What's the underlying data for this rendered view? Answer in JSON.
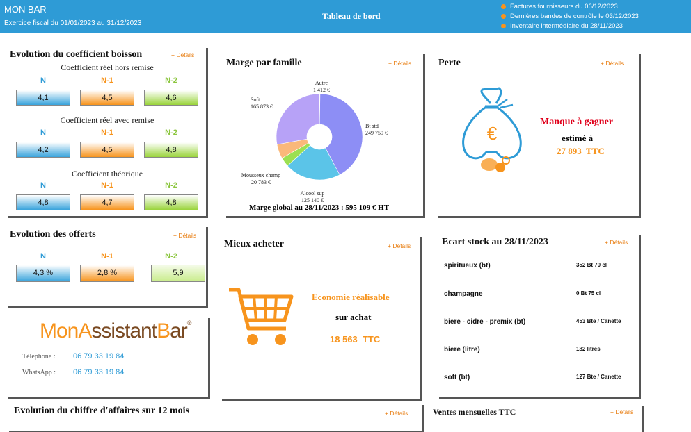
{
  "header": {
    "name": "MON BAR",
    "fiscal": "Exercice fiscal du 01/01/2023 au 31/12/2023",
    "title": "Tableau de bord",
    "notes": [
      "Factures fournisseurs du 06/12/2023",
      "Dernières bandes de contrôle le 03/12/2023",
      "Inventaire intermédiaire du 28/11/2023"
    ]
  },
  "details_label": "+ Détails",
  "coeff": {
    "title": "Evolution du coefficient boisson",
    "cols": [
      "N",
      "N-1",
      "N-2"
    ],
    "groups": [
      {
        "label": "Coefficient réel hors remise",
        "values": [
          "4,1",
          "4,5",
          "4,6"
        ]
      },
      {
        "label": "Coefficient réel avec remise",
        "values": [
          "4,2",
          "4,5",
          "4,8"
        ]
      },
      {
        "label": "Coefficient théorique",
        "values": [
          "4,8",
          "4,7",
          "4,8"
        ]
      }
    ]
  },
  "offerts": {
    "title": "Evolution des offerts",
    "cols": [
      "N",
      "N-1",
      "N-2"
    ],
    "values": [
      "4,3 %",
      "2,8 %",
      "5,9"
    ]
  },
  "contact": {
    "logo_parts": [
      "Mon",
      "A",
      "ssistant",
      "B",
      "ar"
    ],
    "logo_mark": "®",
    "phone_label": "Téléphone :",
    "phone": "06 79 33 19 84",
    "whatsapp_label": "WhatsApp :",
    "whatsapp": "06 79 33 19 84"
  },
  "marge": {
    "title": "Marge par famille",
    "footer": "Marge global au 28/11/2023 : 595 109 € HT",
    "labels": {
      "autre": [
        "Autre",
        "1 412 €"
      ],
      "btstd": [
        "Bt std",
        "249 759 €"
      ],
      "alcool": [
        "Alcool sup",
        "125 140 €"
      ],
      "mousseux": [
        "Mousseux champ",
        "20 783 €"
      ],
      "soft": [
        "Soft",
        "165 873 €"
      ]
    }
  },
  "chart_data": {
    "type": "pie",
    "title": "Marge par famille",
    "categories": [
      "Autre",
      "Bt std",
      "Alcool sup",
      "Mousseux champ",
      "Soft"
    ],
    "values": [
      1412,
      249759,
      125140,
      20783,
      165873
    ],
    "colors": [
      "#d9d9d9",
      "#8d8ef5",
      "#5bc4e8",
      "#9ce052",
      "#b7a2f7"
    ],
    "extra_slice": {
      "value": 32142,
      "color": "#fab87a"
    },
    "donut": true
  },
  "perte": {
    "title": "Perte",
    "line1": "Manque à gagner",
    "line2": "estimé à",
    "amount": "27 893  TTC"
  },
  "mieux": {
    "title": "Mieux acheter",
    "line1": "Economie réalisable",
    "line2": "sur achat",
    "amount": "18 563  TTC"
  },
  "stock": {
    "title": "Ecart stock au 28/11/2023",
    "rows": [
      {
        "name": "spiritueux (bt)",
        "value": "352 Bt 70 cl"
      },
      {
        "name": "champagne",
        "value": "0 Bt 75 cl"
      },
      {
        "name": "biere - cidre - premix (bt)",
        "value": "453 Bte / Canette"
      },
      {
        "name": "biere (litre)",
        "value": "182 litres"
      },
      {
        "name": "soft (bt)",
        "value": "127 Bte / Canette"
      }
    ]
  },
  "ca": {
    "title": "Evolution du chiffre d'affaires sur 12 mois"
  },
  "ventes": {
    "title": "Ventes mensuelles TTC"
  },
  "colors": {
    "header": "#2e9bd6",
    "accent": "#f7941d",
    "red": "#e0001b",
    "n2": "#8cc63f"
  },
  "icons": {
    "money_bag": "money-bag-icon",
    "cart": "shopping-cart-icon",
    "note_dot": "bullet-dot-icon"
  }
}
